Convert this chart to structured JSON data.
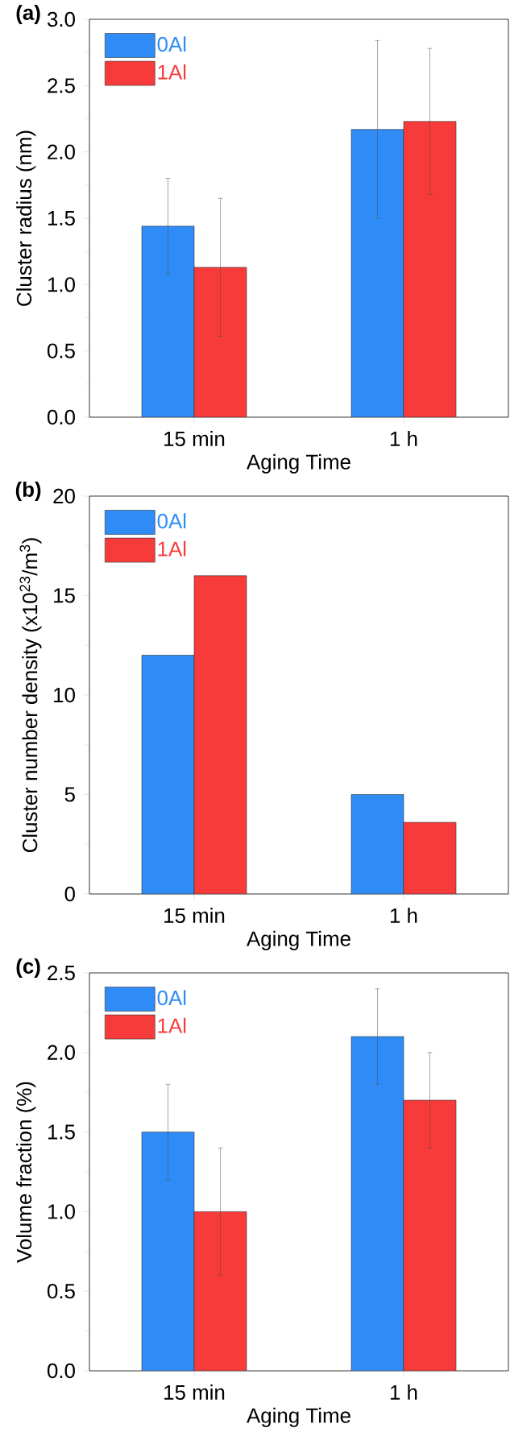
{
  "chart_data": [
    {
      "type": "bar",
      "title": "(a)",
      "xlabel": "Aging Time",
      "ylabel": "Cluster radius (nm)",
      "categories": [
        "15 min",
        "1 h"
      ],
      "series": [
        {
          "name": "0Al",
          "color": "#2f8cf7",
          "values": [
            1.44,
            2.17
          ],
          "errors": [
            0.36,
            0.67
          ]
        },
        {
          "name": "1Al",
          "color": "#f73b3b",
          "values": [
            1.13,
            2.23
          ],
          "errors": [
            0.52,
            0.55
          ]
        }
      ],
      "ylim": [
        0,
        3
      ],
      "yticks": [
        {
          "value": 0,
          "label": "0.0"
        },
        {
          "value": 0.5,
          "label": "0.5"
        },
        {
          "value": 1,
          "label": "1.0"
        },
        {
          "value": 1.5,
          "label": "1.5"
        },
        {
          "value": 2,
          "label": "2.0"
        },
        {
          "value": 2.5,
          "label": "2.5"
        },
        {
          "value": 3,
          "label": "3.0"
        }
      ],
      "legend": "top left"
    },
    {
      "type": "bar",
      "title": "(b)",
      "xlabel": "Aging Time",
      "ylabel": "Cluster number density (x10$^{23}$/m$^{3}$)",
      "categories": [
        "15 min",
        "1 h"
      ],
      "series": [
        {
          "name": "0Al",
          "color": "#2f8cf7",
          "values": [
            12,
            5
          ]
        },
        {
          "name": "1Al",
          "color": "#f73b3b",
          "values": [
            16,
            3.6
          ]
        }
      ],
      "ylim": [
        0,
        20
      ],
      "yticks": [
        0,
        5,
        10,
        15,
        20
      ],
      "legend": "top left"
    },
    {
      "type": "bar",
      "title": "(c)",
      "xlabel": "Aging Time",
      "ylabel": "Volume fraction (%)",
      "categories": [
        "15 min",
        "1 h"
      ],
      "series": [
        {
          "name": "0Al",
          "color": "#2f8cf7",
          "values": [
            1.5,
            2.1
          ],
          "errors": [
            0.3,
            0.3
          ]
        },
        {
          "name": "1Al",
          "color": "#f73b3b",
          "values": [
            1.0,
            1.7
          ],
          "errors": [
            0.4,
            0.3
          ]
        }
      ],
      "ylim": [
        0,
        2.5
      ],
      "yticks": [
        {
          "value": 0,
          "label": "0.0"
        },
        {
          "value": 0.5,
          "label": "0.5"
        },
        {
          "value": 1,
          "label": "1.0"
        },
        {
          "value": 1.5,
          "label": "1.5"
        },
        {
          "value": 2,
          "label": "2.0"
        },
        {
          "value": 2.5,
          "label": "2.5"
        }
      ],
      "legend": "top left"
    }
  ]
}
